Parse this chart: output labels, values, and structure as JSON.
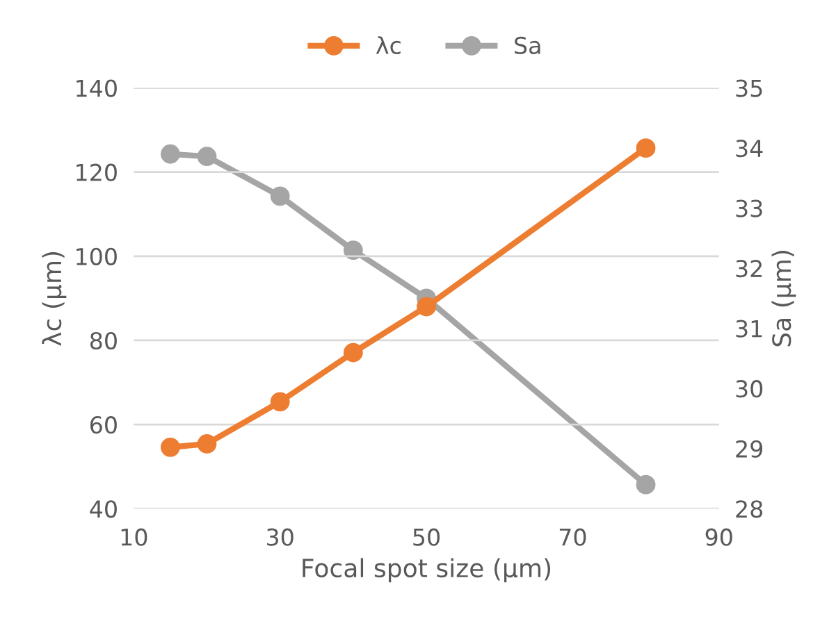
{
  "chart_data": {
    "type": "line",
    "xlabel": "Focal spot size (µm)",
    "ylabel": "λc (µm)",
    "y2label": "Sa (µm)",
    "x": [
      15,
      20,
      30,
      40,
      50,
      80
    ],
    "series": [
      {
        "name": "λc",
        "color": "#ed7d31",
        "values": [
          54.6,
          55.4,
          65.4,
          77.1,
          88.0,
          125.7
        ]
      },
      {
        "name": "Sa",
        "color": "#a5a5a5",
        "axis": "y2",
        "values": [
          33.9,
          33.86,
          33.2,
          32.3,
          31.5,
          28.4
        ]
      }
    ],
    "xlim": [
      10,
      90
    ],
    "xticks": [
      10,
      30,
      50,
      70,
      90
    ],
    "ylim": [
      40,
      140
    ],
    "yticks": [
      40,
      60,
      80,
      100,
      120,
      140
    ],
    "y2lim": [
      28,
      35
    ],
    "y2ticks": [
      28,
      29,
      30,
      31,
      32,
      33,
      34,
      35
    ],
    "grid": "y",
    "legend": "top",
    "marker": "circle",
    "line_style": "solid"
  }
}
